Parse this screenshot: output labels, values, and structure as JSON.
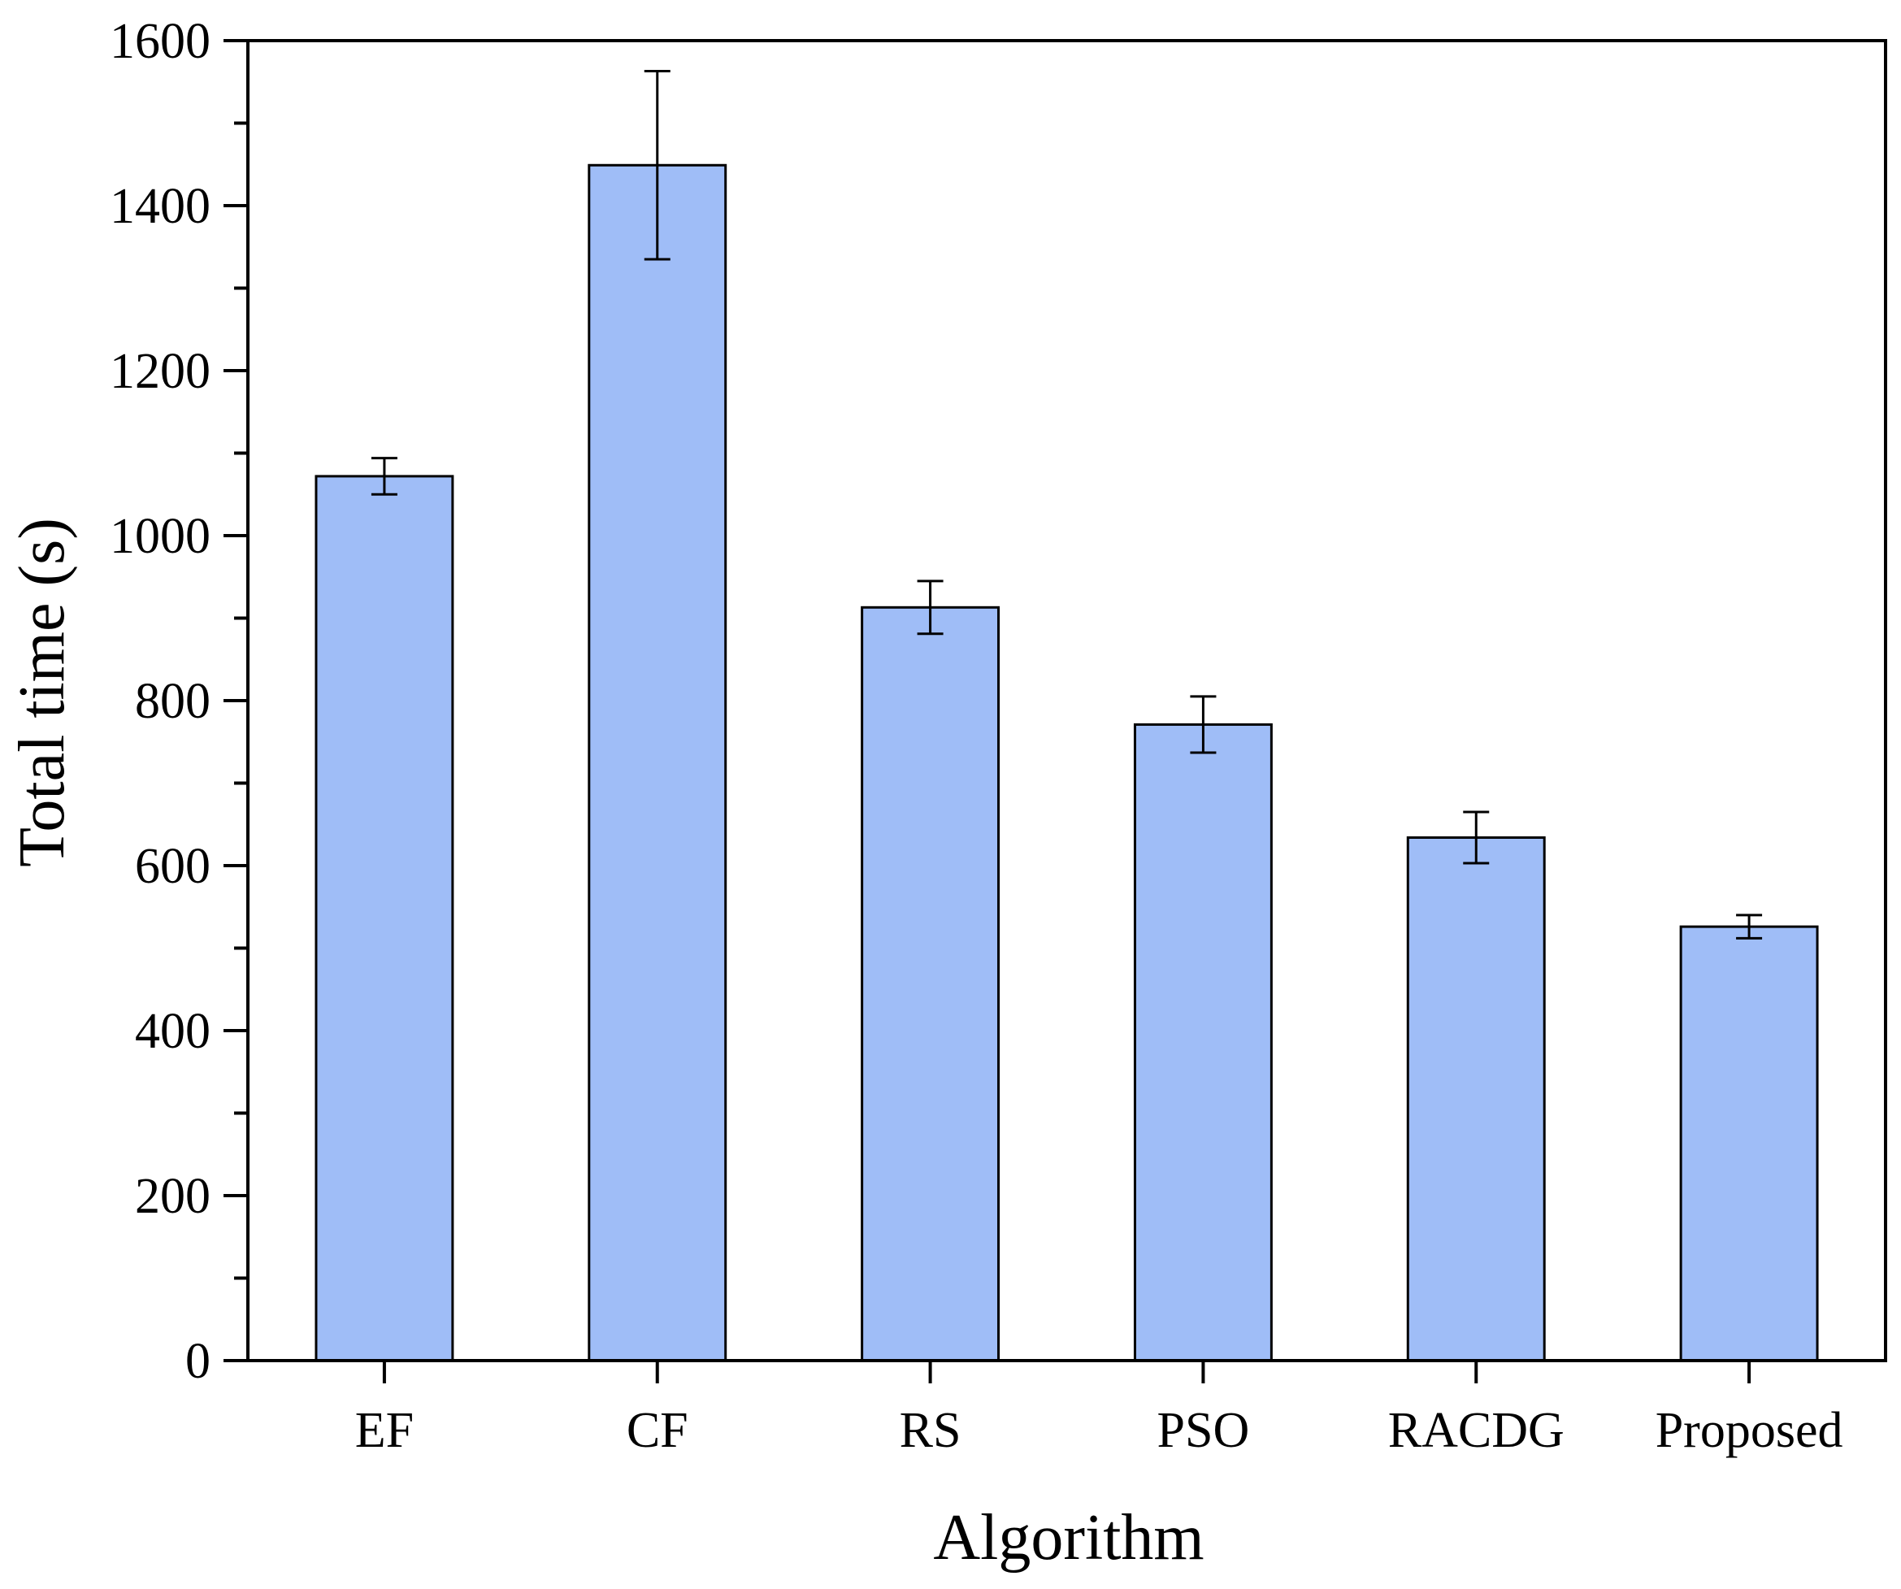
{
  "chart_data": {
    "type": "bar",
    "title": "",
    "xlabel": "Algorithm",
    "ylabel": "Total time (s)",
    "categories": [
      "EF",
      "CF",
      "RS",
      "PSO",
      "RACDG",
      "Proposed"
    ],
    "values": [
      1072,
      1449,
      913,
      771,
      634,
      526
    ],
    "errors": [
      22,
      114,
      32,
      34,
      31,
      14
    ],
    "ylim": [
      0,
      1600
    ],
    "yticks": [
      0,
      200,
      400,
      600,
      800,
      1000,
      1200,
      1400,
      1600
    ],
    "grid": false,
    "legend": "none",
    "colors": {
      "bar_fill": "#9fbdf7",
      "bar_stroke": "#000000",
      "axis": "#000000"
    }
  }
}
